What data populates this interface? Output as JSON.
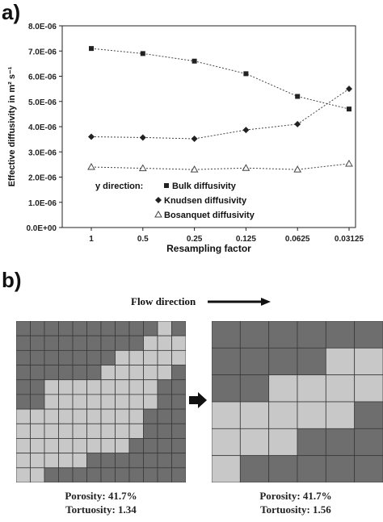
{
  "panel_a": {
    "label": "a)"
  },
  "panel_b": {
    "label": "b)",
    "flow_direction": "Flow direction",
    "left": {
      "porosity": "Porosity: 41.7%",
      "tortuosity": "Tortuosity: 1.34"
    },
    "right": {
      "porosity": "Porosity: 41.7%",
      "tortuosity": "Tortuosity: 1.56"
    },
    "colors": {
      "solid": "#6e6e6e",
      "pore": "#c8c8c8",
      "line": "#3a3a3a"
    },
    "left_grid": {
      "cols": 12,
      "rows": 11,
      "pore_ranges": [
        [
          10,
          10
        ],
        [
          9,
          11
        ],
        [
          7,
          11
        ],
        [
          6,
          10
        ],
        [
          2,
          9
        ],
        [
          2,
          9
        ],
        [
          0,
          8
        ],
        [
          0,
          8
        ],
        [
          0,
          7
        ],
        [
          0,
          4
        ],
        [
          0,
          1
        ]
      ]
    },
    "right_grid": {
      "cols": 6,
      "rows": 6,
      "pore_ranges": [
        [
          null,
          null
        ],
        [
          4,
          5
        ],
        [
          2,
          5
        ],
        [
          0,
          4
        ],
        [
          0,
          2
        ],
        [
          0,
          0
        ]
      ]
    }
  },
  "chart_data": {
    "type": "line",
    "categories": [
      "1",
      "0.5",
      "0.25",
      "0.125",
      "0.0625",
      "0.03125"
    ],
    "xlabel": "Resampling factor",
    "ylabel": "Effective diffusivity in m² s⁻¹",
    "yticks": [
      "0.0E+00",
      "1.0E-06",
      "2.0E-06",
      "3.0E-06",
      "4.0E-06",
      "5.0E-06",
      "6.0E-06",
      "7.0E-06",
      "8.0E-06"
    ],
    "ylim": [
      0,
      8e-06
    ],
    "legend_title": "y direction:",
    "series": [
      {
        "name": "Bulk diffusivity",
        "marker": "square",
        "values": [
          7.1e-06,
          6.9e-06,
          6.6e-06,
          6.1e-06,
          5.2e-06,
          4.7e-06
        ]
      },
      {
        "name": "Knudsen diffusivity",
        "marker": "diamond",
        "values": [
          3.6e-06,
          3.57e-06,
          3.52e-06,
          3.87e-06,
          4.1e-06,
          5.5e-06
        ]
      },
      {
        "name": "Bosanquet diffusivity",
        "marker": "triangle",
        "values": [
          2.4e-06,
          2.35e-06,
          2.3e-06,
          2.36e-06,
          2.3e-06,
          2.53e-06
        ]
      }
    ]
  }
}
